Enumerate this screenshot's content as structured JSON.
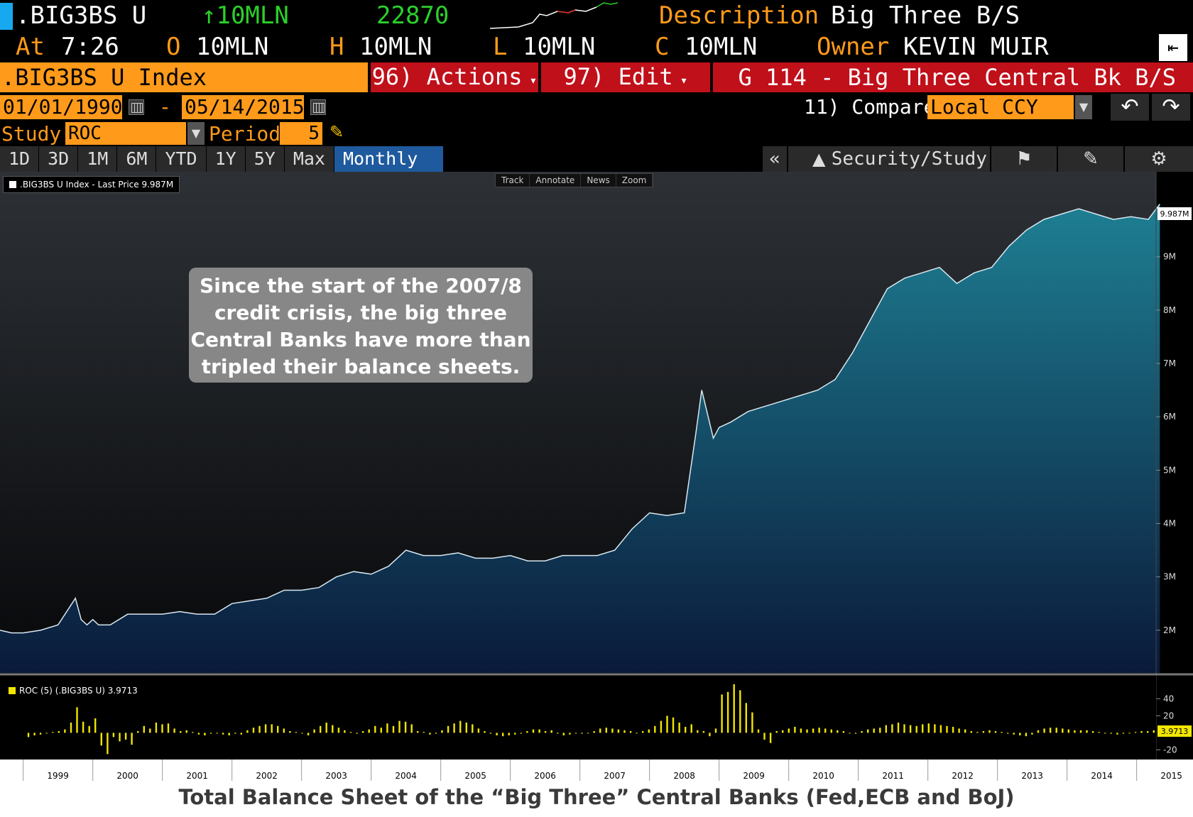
{
  "header": {
    "ticker": ".BIG3BS U",
    "change": "↑10MLN",
    "value": "22870",
    "desc_label": "Description",
    "desc_value": "Big Three B/S",
    "at_label": "At",
    "time": "7:26",
    "o_label": "O",
    "o_value": "10MLN",
    "h_label": "H",
    "h_value": "10MLN",
    "l_label": "L",
    "l_value": "10MLN",
    "c_label": "C",
    "c_value": "10MLN",
    "owner_label": "Owner",
    "owner_value": "KEVIN MUIR"
  },
  "toolbar": {
    "index_name": ".BIG3BS U Index",
    "actions_label": "96) Actions",
    "edit_label": "97) Edit",
    "page_title": "G 114 - Big Three Central Bk B/S",
    "start_date": "01/01/1990",
    "date_sep": "-",
    "end_date": "05/14/2015",
    "compare_label": "11) Compare",
    "compare_value": "Local CCY",
    "study_label": "Study",
    "study_value": "ROC",
    "period_label": "Period",
    "period_value": "5"
  },
  "tabs": [
    "1D",
    "3D",
    "1M",
    "6M",
    "YTD",
    "1Y",
    "5Y",
    "Max",
    "Monthly ▼"
  ],
  "right_tools": {
    "collapse": "«",
    "security_study": "Security/Study"
  },
  "mini_tools": [
    "Track",
    "Annotate",
    "News",
    "Zoom"
  ],
  "annotation": "Since the start of the 2007/8 credit crisis, the big three Central Banks have more than tripled their balance sheets.",
  "caption": "Total Balance Sheet of the “Big Three” Central Banks (Fed,ECB and BoJ)",
  "colors": {
    "orange": "#ff9a1a",
    "red": "#c0101a",
    "area_top": "#1e7f93",
    "area_bottom": "#0a1a3a",
    "roc": "#f2e600"
  },
  "chart_data": [
    {
      "type": "area",
      "title": "",
      "legend": ".BIG3BS U Index - Last Price 9.987M",
      "last_value_label": "9.987M",
      "series": [
        {
          "name": ".BIG3BS U Index - Last Price",
          "x": [
            "1998-09",
            "1998-11",
            "1999-01",
            "1999-04",
            "1999-07",
            "1999-10",
            "1999-11",
            "1999-12",
            "2000-01",
            "2000-02",
            "2000-04",
            "2000-07",
            "2000-10",
            "2001-01",
            "2001-04",
            "2001-07",
            "2001-10",
            "2002-01",
            "2002-04",
            "2002-07",
            "2002-10",
            "2003-01",
            "2003-04",
            "2003-07",
            "2003-10",
            "2004-01",
            "2004-04",
            "2004-07",
            "2004-10",
            "2005-01",
            "2005-04",
            "2005-07",
            "2005-10",
            "2006-01",
            "2006-04",
            "2006-07",
            "2006-10",
            "2007-01",
            "2007-04",
            "2007-07",
            "2007-10",
            "2008-01",
            "2008-04",
            "2008-07",
            "2008-09",
            "2008-10",
            "2008-12",
            "2009-01",
            "2009-03",
            "2009-06",
            "2009-09",
            "2009-12",
            "2010-03",
            "2010-06",
            "2010-09",
            "2010-12",
            "2011-03",
            "2011-06",
            "2011-09",
            "2011-12",
            "2012-03",
            "2012-06",
            "2012-09",
            "2012-12",
            "2013-03",
            "2013-06",
            "2013-09",
            "2013-12",
            "2014-03",
            "2014-06",
            "2014-09",
            "2014-12",
            "2015-03",
            "2015-05"
          ],
          "values": [
            2.0,
            1.95,
            1.95,
            2.0,
            2.1,
            2.6,
            2.2,
            2.1,
            2.2,
            2.1,
            2.1,
            2.3,
            2.3,
            2.3,
            2.35,
            2.3,
            2.3,
            2.5,
            2.55,
            2.6,
            2.75,
            2.75,
            2.8,
            3.0,
            3.1,
            3.05,
            3.2,
            3.5,
            3.4,
            3.4,
            3.45,
            3.35,
            3.35,
            3.4,
            3.3,
            3.3,
            3.4,
            3.4,
            3.4,
            3.5,
            3.9,
            4.2,
            4.15,
            4.2,
            5.7,
            6.5,
            5.6,
            5.8,
            5.9,
            6.1,
            6.2,
            6.3,
            6.4,
            6.5,
            6.7,
            7.2,
            7.8,
            8.4,
            8.6,
            8.7,
            8.8,
            8.5,
            8.7,
            8.8,
            9.2,
            9.5,
            9.7,
            9.8,
            9.9,
            9.8,
            9.7,
            9.75,
            9.7,
            9.987
          ]
        }
      ],
      "y_ticks": [
        "9M",
        "8M",
        "7M",
        "6M",
        "5M",
        "4M",
        "3M",
        "2M"
      ],
      "ylim": [
        1.2,
        10.3
      ],
      "x_labels": [
        "1999",
        "2000",
        "2001",
        "2002",
        "2003",
        "2004",
        "2005",
        "2006",
        "2007",
        "2008",
        "2009",
        "2010",
        "2011",
        "2012",
        "2013",
        "2014",
        "2015"
      ]
    },
    {
      "type": "bar",
      "title": "",
      "legend": "ROC (5) (.BIG3BS U) 3.9713",
      "last_value_label": "3.9713",
      "series": [
        {
          "name": "ROC (5) (.BIG3BS U)",
          "values": [
            -5,
            -3,
            -2,
            0,
            1,
            2,
            4,
            12,
            30,
            13,
            8,
            17,
            -15,
            -25,
            -5,
            -10,
            -8,
            -14,
            2,
            8,
            5,
            12,
            10,
            11,
            5,
            2,
            3,
            1,
            -2,
            -3,
            -1,
            0,
            -2,
            -3,
            -1,
            -2,
            3,
            6,
            8,
            10,
            10,
            8,
            5,
            2,
            1,
            0,
            -3,
            4,
            8,
            12,
            9,
            6,
            3,
            1,
            -1,
            2,
            4,
            8,
            6,
            11,
            8,
            14,
            13,
            10,
            2,
            1,
            -2,
            -1,
            3,
            8,
            11,
            14,
            12,
            10,
            5,
            2,
            -1,
            -3,
            -4,
            -3,
            -2,
            -1,
            2,
            4,
            4,
            2,
            3,
            -1,
            -3,
            -2,
            0,
            -1,
            0,
            2,
            5,
            6,
            5,
            4,
            3,
            2,
            0,
            2,
            4,
            8,
            14,
            20,
            18,
            12,
            7,
            10,
            3,
            2,
            -4,
            5,
            45,
            48,
            57,
            50,
            35,
            24,
            4,
            -8,
            -12,
            2,
            3,
            5,
            7,
            5,
            4,
            5,
            6,
            5,
            4,
            3,
            2,
            0,
            -1,
            2,
            4,
            5,
            6,
            9,
            10,
            12,
            10,
            9,
            8,
            10,
            11,
            10,
            9,
            8,
            7,
            5,
            4,
            2,
            1,
            2,
            3,
            2,
            1,
            -1,
            -2,
            -3,
            -4,
            -2,
            3,
            5,
            6,
            6,
            5,
            4,
            3,
            3,
            3,
            2,
            1,
            0,
            -1,
            -2,
            -1,
            0,
            1,
            2,
            2,
            3,
            3.97
          ]
        }
      ],
      "y_ticks": [
        "40",
        "20",
        "-20"
      ],
      "ylim": [
        -28,
        62
      ]
    }
  ]
}
